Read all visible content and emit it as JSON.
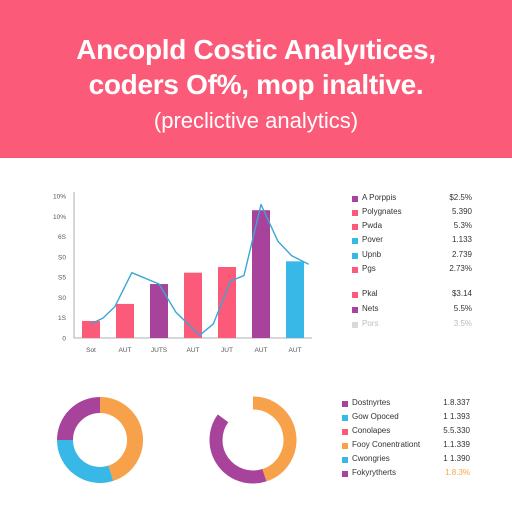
{
  "header": {
    "title_line1": "Ancopld Costic Analyıtices,",
    "title_line2": "coders Of%, mop inaltive.",
    "subtitle": "(preclictive analytics)"
  },
  "colors": {
    "banner": "#fb5b78",
    "pink": "#fb5b78",
    "purple": "#a8439c",
    "blue": "#38b8e6",
    "orange": "#f7a24a",
    "line": "#3aa6d8"
  },
  "chart_data": [
    {
      "type": "bar",
      "categories": [
        "Sot",
        "AUT",
        "JUTS",
        "AUT",
        "JUT",
        "AUT",
        "AUT"
      ],
      "series": [
        {
          "values": [
            12,
            24,
            38,
            46,
            50,
            90,
            54
          ],
          "colors": [
            "pink",
            "pink",
            "purple",
            "pink",
            "pink",
            "purple",
            "blue"
          ]
        }
      ],
      "overlay_line": [
        [
          0,
          10
        ],
        [
          0.35,
          14
        ],
        [
          0.7,
          22
        ],
        [
          1.2,
          46
        ],
        [
          2,
          38
        ],
        [
          2.5,
          18
        ],
        [
          3.2,
          2
        ],
        [
          3.6,
          10
        ],
        [
          4.1,
          40
        ],
        [
          4.5,
          44
        ],
        [
          5,
          94
        ],
        [
          5.5,
          68
        ],
        [
          5.9,
          58
        ],
        [
          6.4,
          52
        ]
      ],
      "ylim": [
        0,
        100
      ],
      "y_tick_labels": [
        "0",
        "1S",
        "S0",
        "S5",
        "S0",
        "6S",
        "10%",
        "10%"
      ],
      "legend": [
        {
          "name": "A Porppis",
          "value": "$2.5%",
          "color": "purple"
        },
        {
          "name": "Polygnates",
          "value": "5.390",
          "color": "pink"
        },
        {
          "name": "Pwda",
          "value": "5.3%",
          "color": "pink"
        },
        {
          "name": "Pover",
          "value": "1.133",
          "color": "blue"
        },
        {
          "name": "Upnb",
          "value": "2.739",
          "color": "blue"
        },
        {
          "name": "Pgs",
          "value": "2.73%",
          "color": "pink"
        },
        {
          "name": "Pkal",
          "value": "$3.14",
          "color": "pink"
        },
        {
          "name": "Nets",
          "value": "5.5%",
          "color": "purple"
        },
        {
          "name": "Pors",
          "value": "3.5%",
          "color": "faded"
        }
      ]
    },
    {
      "type": "pie",
      "style": "donut",
      "slices": [
        {
          "color": "orange",
          "value": 45
        },
        {
          "color": "blue",
          "value": 30
        },
        {
          "color": "purple",
          "value": 25
        }
      ]
    },
    {
      "type": "pie",
      "style": "donut",
      "slices": [
        {
          "color": "orange",
          "value": 45
        },
        {
          "color": "purple",
          "value": 40
        },
        {
          "color": "white",
          "value": 15
        }
      ]
    }
  ],
  "legend2": [
    {
      "name": "Dostnyrtes",
      "value": "1.8.337",
      "color": "purple"
    },
    {
      "name": "Gow Opoced",
      "value": "1 1.393",
      "color": "blue"
    },
    {
      "name": "Conolapes",
      "value": "5.5.330",
      "color": "pink"
    },
    {
      "name": "Fooy Conentrationt",
      "value": "1.1.339",
      "color": "orange"
    },
    {
      "name": "Cwongries",
      "value": "1 1.390",
      "color": "blue"
    },
    {
      "name": "Fokyrytherts",
      "value": "1.8.3%",
      "color": "purple",
      "value_color": "orange"
    }
  ]
}
